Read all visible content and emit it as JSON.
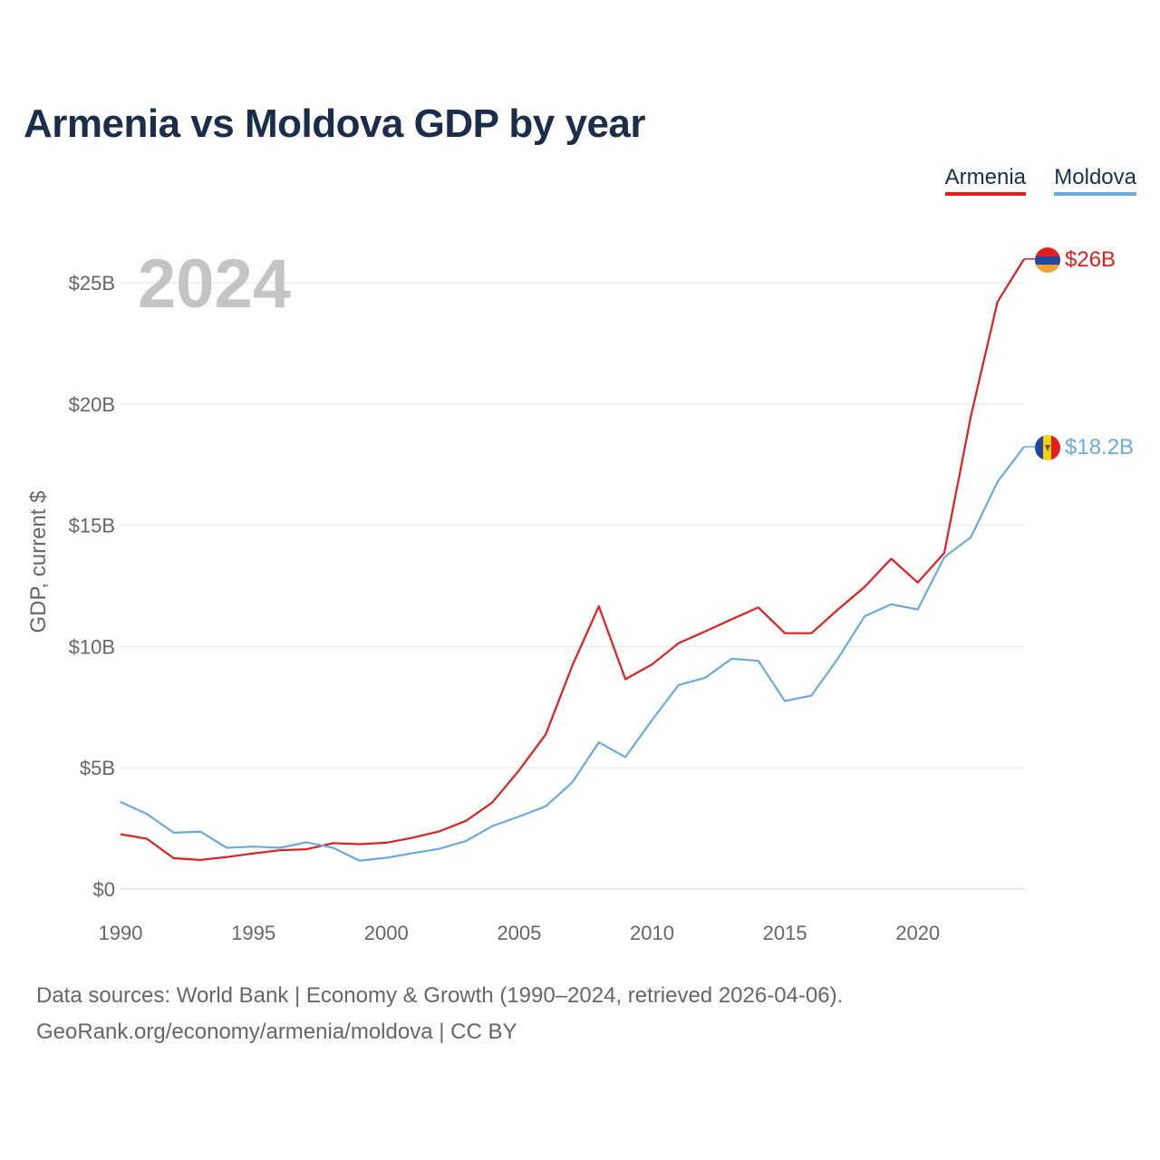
{
  "title": "Armenia vs Moldova GDP by year",
  "legend": [
    {
      "name": "Armenia",
      "color": "#e41e1e"
    },
    {
      "name": "Moldova",
      "color": "#6aaae3"
    }
  ],
  "year_label": "2024",
  "footer": {
    "source": "Data sources: World Bank | Economy & Growth (1990–2024, retrieved 2026-04-06).",
    "credit": "GeoRank.org/economy/armenia/moldova | CC BY"
  },
  "chart_data": {
    "type": "line",
    "title": "Armenia vs Moldova GDP by year",
    "xlabel": "",
    "ylabel": "GDP, current $",
    "xlim": [
      1990,
      2024
    ],
    "ylim": [
      0,
      26
    ],
    "x_ticks": [
      1990,
      1995,
      2000,
      2005,
      2010,
      2015,
      2020
    ],
    "y_ticks": [
      {
        "value": 0,
        "label": "$0"
      },
      {
        "value": 5,
        "label": "$5B"
      },
      {
        "value": 10,
        "label": "$10B"
      },
      {
        "value": 15,
        "label": "$15B"
      },
      {
        "value": 20,
        "label": "$20B"
      },
      {
        "value": 25,
        "label": "$25B"
      }
    ],
    "grid": true,
    "legend_position": "top-right",
    "x": [
      1990,
      1991,
      1992,
      1993,
      1994,
      1995,
      1996,
      1997,
      1998,
      1999,
      2000,
      2001,
      2002,
      2003,
      2004,
      2005,
      2006,
      2007,
      2008,
      2009,
      2010,
      2011,
      2012,
      2013,
      2014,
      2015,
      2016,
      2017,
      2018,
      2019,
      2020,
      2021,
      2022,
      2023,
      2024
    ],
    "series": [
      {
        "name": "Armenia",
        "color": "#e41e1e",
        "end_label": "$26B",
        "values": [
          2.26,
          2.07,
          1.27,
          1.2,
          1.32,
          1.47,
          1.6,
          1.64,
          1.89,
          1.85,
          1.91,
          2.12,
          2.38,
          2.81,
          3.58,
          4.9,
          6.38,
          9.21,
          11.66,
          8.65,
          9.26,
          10.14,
          10.62,
          11.12,
          11.61,
          10.55,
          10.55,
          11.53,
          12.46,
          13.62,
          12.64,
          13.86,
          19.51,
          24.21,
          25.98
        ]
      },
      {
        "name": "Moldova",
        "color": "#6aaae3",
        "end_label": "$18.2B",
        "values": [
          3.59,
          3.09,
          2.32,
          2.37,
          1.7,
          1.75,
          1.7,
          1.93,
          1.7,
          1.17,
          1.29,
          1.48,
          1.66,
          1.98,
          2.6,
          2.99,
          3.41,
          4.4,
          6.05,
          5.44,
          6.97,
          8.41,
          8.71,
          9.5,
          9.41,
          7.75,
          7.98,
          9.51,
          11.25,
          11.74,
          11.53,
          13.69,
          14.51,
          16.79,
          18.24
        ]
      }
    ]
  }
}
